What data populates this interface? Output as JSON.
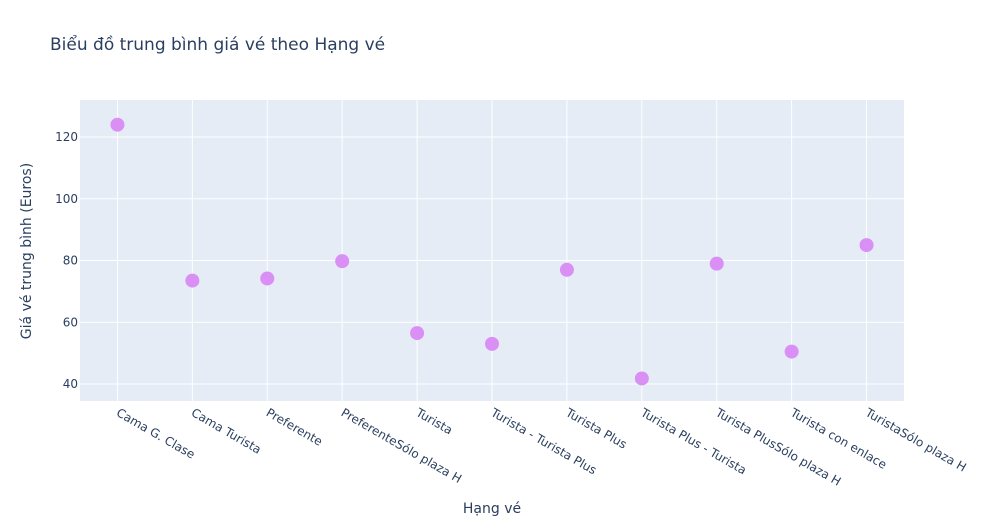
{
  "chart_data": {
    "type": "scatter",
    "title": "Biểu đồ trung bình giá vé theo Hạng vé",
    "xlabel": "Hạng vé",
    "ylabel": "Giá vé trung bình (Euros)",
    "categories": [
      "Cama G. Clase",
      "Cama Turista",
      "Preferente",
      "PreferenteSólo plaza H",
      "Turista",
      "Turista - Turista Plus",
      "Turista Plus",
      "Turista Plus - Turista",
      "Turista PlusSólo plaza H",
      "Turista con enlace",
      "TuristaSólo plaza H"
    ],
    "values": [
      124,
      73.5,
      74.2,
      79.8,
      56.5,
      53.0,
      77.0,
      41.8,
      79.0,
      50.5,
      85.0
    ],
    "yticks": [
      40,
      60,
      80,
      100,
      120
    ],
    "ylim": [
      34.5,
      132
    ],
    "grid": true,
    "colors": {
      "marker": "#da8ff5",
      "plot_background": "#e5ecf6",
      "grid": "#ffffff",
      "text": "#2a3f5f"
    }
  }
}
